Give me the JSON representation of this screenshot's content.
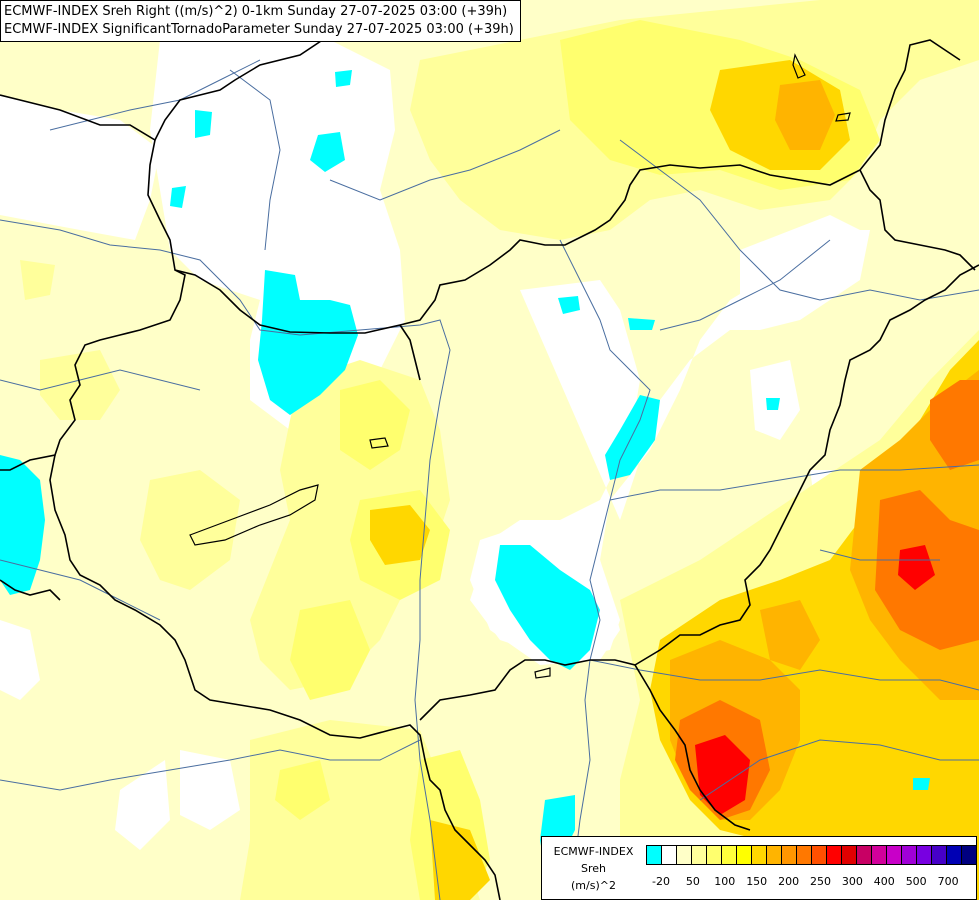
{
  "title": {
    "line1": "ECMWF-INDEX Sreh Right ((m/s)^2) 0-1km Sunday 27-07-2025 03:00 (+39h)",
    "line2": "ECMWF-INDEX SignificantTornadoParameter Sunday 27-07-2025 03:00 (+39h)"
  },
  "legend": {
    "model": "ECMWF-INDEX",
    "variable": "Sreh",
    "unit": "(m/s)^2",
    "colors": [
      "#00ffff",
      "#ffffff",
      "#ffffc8",
      "#ffff9b",
      "#ffff6e",
      "#ffff3c",
      "#ffff00",
      "#ffd700",
      "#ffb400",
      "#ff9600",
      "#ff7800",
      "#ff5000",
      "#ff0000",
      "#e10000",
      "#c80064",
      "#d2009b",
      "#c800c8",
      "#a000d7",
      "#7800e1",
      "#4600c8",
      "#0000b4",
      "#000080"
    ],
    "ticks": [
      "-20",
      "50",
      "100",
      "150",
      "200",
      "250",
      "300",
      "400",
      "500",
      "700"
    ]
  },
  "colors": {
    "cyan": "#00ffff",
    "white": "#ffffff",
    "pale_yellow": "#ffffc8",
    "light_yellow": "#ffff9b",
    "yellow": "#ffff6e",
    "gold": "#ffff00",
    "light_orange": "#ffd700",
    "orange": "#ffb400",
    "dark_orange": "#ff7800",
    "red": "#ff5000",
    "deep_red": "#ff0000",
    "border": "#000000",
    "river": "#4a6ea0"
  }
}
